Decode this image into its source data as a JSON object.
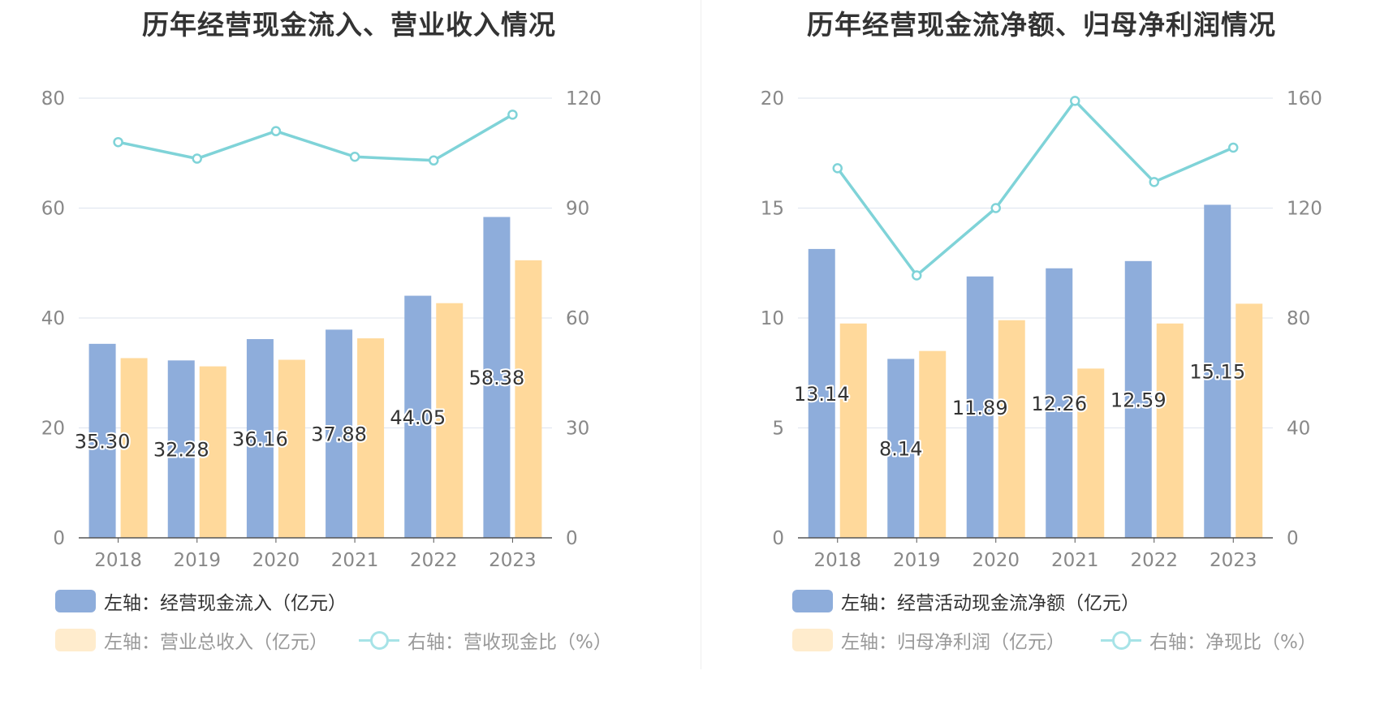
{
  "colors": {
    "bar1": "#8eaddb",
    "bar2": "#ffd99b",
    "line": "#7fd3d8",
    "grid": "#dde3ee",
    "axis": "#555555",
    "tick": "#888888"
  },
  "chart_data": [
    {
      "type": "bar",
      "title": "历年经营现金流入、营业收入情况",
      "categories": [
        "2018",
        "2019",
        "2020",
        "2021",
        "2022",
        "2023"
      ],
      "left_axis": {
        "ylim": [
          0,
          80
        ],
        "ticks": [
          "0",
          "20",
          "40",
          "60",
          "80"
        ]
      },
      "right_axis": {
        "ylim": [
          0,
          120
        ],
        "ticks": [
          "0",
          "30",
          "60",
          "90",
          "120"
        ]
      },
      "series": [
        {
          "name": "左轴：经营现金流入（亿元）",
          "type": "bar",
          "axis": "left",
          "values": [
            35.3,
            32.28,
            36.16,
            37.88,
            44.05,
            58.38
          ],
          "labels": [
            "35.30",
            "32.28",
            "36.16",
            "37.88",
            "44.05",
            "58.38"
          ]
        },
        {
          "name": "左轴：营业总收入（亿元）",
          "type": "bar",
          "axis": "left",
          "values": [
            32.7,
            31.2,
            32.4,
            36.3,
            42.7,
            50.5
          ]
        },
        {
          "name": "右轴：营收现金比（%）",
          "type": "line",
          "axis": "right",
          "values": [
            108,
            103.5,
            111,
            104,
            103,
            115.5
          ]
        }
      ],
      "legend": [
        {
          "label": "左轴：经营现金流入（亿元）",
          "kind": "bar1",
          "active": true
        },
        {
          "label": "左轴：营业总收入（亿元）",
          "kind": "bar2",
          "active": false
        },
        {
          "label": "右轴：营收现金比（%）",
          "kind": "line",
          "active": false
        }
      ]
    },
    {
      "type": "bar",
      "title": "历年经营现金流净额、归母净利润情况",
      "categories": [
        "2018",
        "2019",
        "2020",
        "2021",
        "2022",
        "2023"
      ],
      "left_axis": {
        "ylim": [
          0,
          20
        ],
        "ticks": [
          "0",
          "5",
          "10",
          "15",
          "20"
        ]
      },
      "right_axis": {
        "ylim": [
          0,
          160
        ],
        "ticks": [
          "0",
          "40",
          "80",
          "120",
          "160"
        ]
      },
      "series": [
        {
          "name": "左轴：经营活动现金流净额（亿元）",
          "type": "bar",
          "axis": "left",
          "values": [
            13.14,
            8.14,
            11.89,
            12.26,
            12.59,
            15.15
          ],
          "labels": [
            "13.14",
            "8.14",
            "11.89",
            "12.26",
            "12.59",
            "15.15"
          ]
        },
        {
          "name": "左轴：归母净利润（亿元）",
          "type": "bar",
          "axis": "left",
          "values": [
            9.75,
            8.5,
            9.9,
            7.7,
            9.75,
            10.65
          ]
        },
        {
          "name": "右轴：净现比（%）",
          "type": "line",
          "axis": "right",
          "values": [
            134.5,
            95.5,
            120,
            159,
            129.5,
            142
          ]
        }
      ],
      "legend": [
        {
          "label": "左轴：经营活动现金流净额（亿元）",
          "kind": "bar1",
          "active": true
        },
        {
          "label": "左轴：归母净利润（亿元）",
          "kind": "bar2",
          "active": false
        },
        {
          "label": "右轴：净现比（%）",
          "kind": "line",
          "active": false
        }
      ]
    }
  ]
}
